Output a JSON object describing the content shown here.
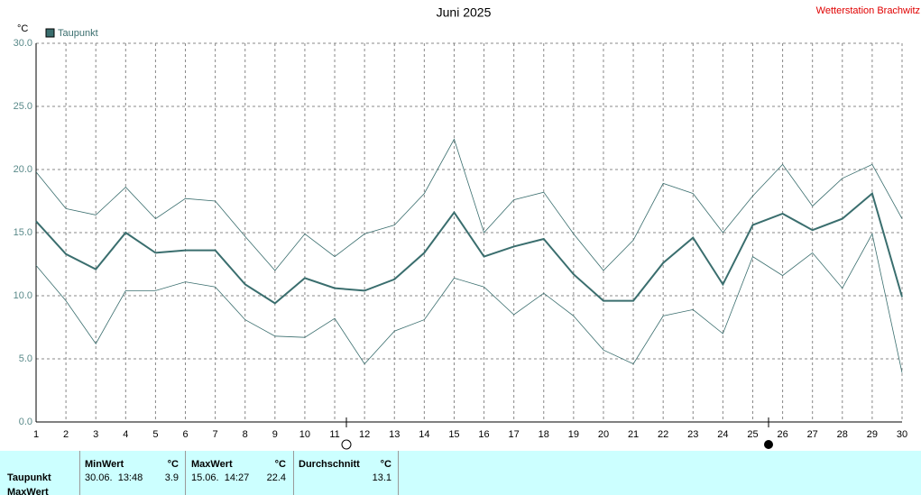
{
  "chart_data": {
    "type": "line",
    "title": "Juni 2025",
    "ylabel": "°C",
    "annotation": "Wetterstation Brachwitz",
    "x": [
      1,
      2,
      3,
      4,
      5,
      6,
      7,
      8,
      9,
      10,
      11,
      12,
      13,
      14,
      15,
      16,
      17,
      18,
      19,
      20,
      21,
      22,
      23,
      24,
      25,
      26,
      27,
      28,
      29,
      30
    ],
    "xlim": [
      1,
      30
    ],
    "series": [
      {
        "name": "Taupunkt",
        "color": "#3a6e6e",
        "line_width": 2,
        "values": [
          15.9,
          13.3,
          12.1,
          15.0,
          13.4,
          13.6,
          13.6,
          10.9,
          9.4,
          11.4,
          10.6,
          10.4,
          11.3,
          13.4,
          16.6,
          13.1,
          13.9,
          14.5,
          11.7,
          9.6,
          9.6,
          12.6,
          14.6,
          10.9,
          15.6,
          16.5,
          15.2,
          16.1,
          18.1,
          9.9
        ]
      },
      {
        "color": "#3a6e6e",
        "line_width": 0.8,
        "values": [
          19.8,
          16.9,
          16.4,
          18.6,
          16.1,
          17.7,
          17.5,
          14.7,
          12.0,
          14.9,
          13.1,
          14.9,
          15.6,
          18.1,
          22.4,
          15.0,
          17.6,
          18.2,
          14.9,
          12.0,
          14.4,
          18.9,
          18.1,
          15.0,
          17.9,
          20.4,
          17.1,
          19.3,
          20.4,
          16.1
        ]
      },
      {
        "color": "#3a6e6e",
        "line_width": 0.8,
        "values": [
          12.4,
          9.6,
          6.2,
          10.4,
          10.4,
          11.1,
          10.7,
          8.1,
          6.8,
          6.7,
          8.2,
          4.6,
          7.2,
          8.1,
          11.4,
          10.7,
          8.5,
          10.2,
          8.4,
          5.7,
          4.6,
          8.4,
          8.9,
          7.0,
          13.1,
          11.6,
          13.4,
          10.6,
          14.9,
          3.9
        ]
      }
    ],
    "ylim": [
      0,
      30
    ],
    "yticks": [
      {
        "value": 0,
        "label": "0.0"
      },
      {
        "value": 5,
        "label": "5.0"
      },
      {
        "value": 10,
        "label": "10.0"
      },
      {
        "value": 15,
        "label": "15.0"
      },
      {
        "value": 20,
        "label": "20.0"
      },
      {
        "value": 25,
        "label": "25.0"
      },
      {
        "value": 30,
        "label": "30.0"
      }
    ],
    "grid": true
  },
  "table": {
    "columns": [
      "MinWert",
      "°C",
      "MaxWert",
      "°C",
      "Durchschnitt",
      "°C"
    ],
    "rows": [
      [
        "Taupunkt",
        "30.06.  13:48",
        3.9,
        "15.06.  14:27",
        22.4,
        13.1
      ],
      [
        "MaxWert"
      ]
    ]
  }
}
